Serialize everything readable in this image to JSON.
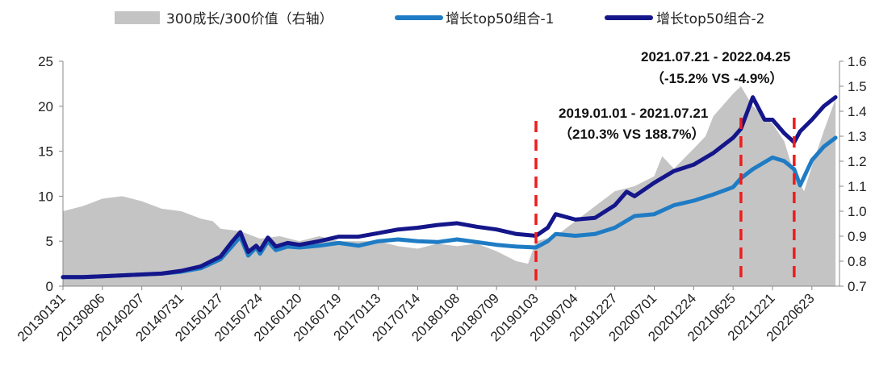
{
  "colors": {
    "area": "#c4c4c4",
    "series1": "#1f7cc4",
    "series2": "#14168a",
    "marker": "#ee1c1c",
    "axis": "#888888"
  },
  "legend": [
    {
      "label": "300成长/300价值（右轴）",
      "kind": "area"
    },
    {
      "label": "增长top50组合-1",
      "kind": "line1"
    },
    {
      "label": "增长top50组合-2",
      "kind": "line2"
    }
  ],
  "annotations": [
    {
      "line1": "2019.01.01 - 2021.07.21",
      "line2": "（210.3% VS 188.7%）"
    },
    {
      "line1": "2021.07.21 - 2022.04.25",
      "line2": "（-15.2% VS -4.9%）"
    }
  ],
  "chart_data": {
    "type": "line",
    "x_tick_labels": [
      "20130131",
      "20130806",
      "20140207",
      "20140731",
      "20150127",
      "20150724",
      "20160120",
      "20160719",
      "20170113",
      "20170714",
      "20180108",
      "20180709",
      "20190103",
      "20190704",
      "20191227",
      "20200701",
      "20201224",
      "20210625",
      "20211221",
      "20220623"
    ],
    "x_index_range": [
      0,
      19.7
    ],
    "y_left": {
      "range": [
        0,
        25
      ],
      "ticks": [
        0,
        5,
        10,
        15,
        20,
        25
      ]
    },
    "y_right": {
      "range": [
        0.7,
        1.6
      ],
      "ticks": [
        "0.7",
        "0.8",
        "0.9",
        "1.0",
        "1.1",
        "1.2",
        "1.3",
        "1.4",
        "1.5",
        "1.6"
      ]
    },
    "marker_lines_x": [
      12.0,
      17.2,
      18.55
    ],
    "series": [
      {
        "name": "300成长/300价值（右轴）",
        "kind": "area",
        "axis": "right",
        "x": [
          0,
          0.5,
          1,
          1.5,
          2,
          2.5,
          3,
          3.5,
          3.8,
          4,
          4.5,
          5,
          5.5,
          6,
          6.5,
          7,
          7.5,
          8,
          8.5,
          9,
          9.5,
          10,
          10.5,
          11,
          11.5,
          11.8,
          12,
          12.5,
          13,
          13.5,
          14,
          14.5,
          15,
          15.2,
          15.5,
          16,
          16.3,
          16.5,
          17,
          17.2,
          17.5,
          18,
          18.3,
          18.55,
          18.8,
          19,
          19.3,
          19.6
        ],
        "values": [
          1.0,
          1.02,
          1.05,
          1.06,
          1.04,
          1.01,
          1.0,
          0.97,
          0.96,
          0.93,
          0.92,
          0.89,
          0.9,
          0.88,
          0.9,
          0.88,
          0.88,
          0.88,
          0.86,
          0.85,
          0.87,
          0.86,
          0.87,
          0.84,
          0.8,
          0.79,
          0.88,
          0.9,
          0.96,
          1.02,
          1.08,
          1.1,
          1.14,
          1.22,
          1.17,
          1.25,
          1.3,
          1.38,
          1.47,
          1.5,
          1.42,
          1.35,
          1.28,
          1.15,
          1.08,
          1.18,
          1.32,
          1.45
        ]
      },
      {
        "name": "增长top50组合-1",
        "kind": "line",
        "axis": "left",
        "x": [
          0,
          0.5,
          1,
          1.5,
          2,
          2.5,
          3,
          3.5,
          4,
          4.3,
          4.5,
          4.7,
          4.9,
          5.0,
          5.2,
          5.4,
          5.7,
          6,
          6.5,
          7,
          7.5,
          8,
          8.5,
          9,
          9.5,
          10,
          10.5,
          11,
          11.5,
          12,
          12.3,
          12.5,
          13,
          13.5,
          14,
          14.5,
          15,
          15.5,
          16,
          16.5,
          17,
          17.2,
          17.5,
          18,
          18.3,
          18.55,
          18.7,
          19,
          19.3,
          19.6
        ],
        "values": [
          1.0,
          1.0,
          1.1,
          1.2,
          1.3,
          1.4,
          1.6,
          2.0,
          3.0,
          4.5,
          5.5,
          3.4,
          4.3,
          3.6,
          5.0,
          4.0,
          4.4,
          4.3,
          4.5,
          4.8,
          4.5,
          5.0,
          5.2,
          5.0,
          4.9,
          5.2,
          4.9,
          4.6,
          4.4,
          4.3,
          5.0,
          5.8,
          5.6,
          5.8,
          6.5,
          7.8,
          8.0,
          9.0,
          9.5,
          10.2,
          11.0,
          12.0,
          13.0,
          14.3,
          13.9,
          13.0,
          11.2,
          14.0,
          15.5,
          16.5
        ]
      },
      {
        "name": "增长top50组合-2",
        "kind": "line",
        "axis": "left",
        "x": [
          0,
          0.5,
          1,
          1.5,
          2,
          2.5,
          3,
          3.5,
          4,
          4.3,
          4.5,
          4.7,
          4.9,
          5.0,
          5.2,
          5.4,
          5.7,
          6,
          6.5,
          7,
          7.5,
          8,
          8.5,
          9,
          9.5,
          10,
          10.5,
          11,
          11.5,
          12,
          12.3,
          12.5,
          13,
          13.5,
          14,
          14.3,
          14.5,
          15,
          15.5,
          16,
          16.5,
          17,
          17.2,
          17.5,
          17.8,
          18,
          18.3,
          18.55,
          18.7,
          19,
          19.3,
          19.6
        ],
        "values": [
          1.0,
          1.0,
          1.1,
          1.2,
          1.3,
          1.4,
          1.7,
          2.2,
          3.3,
          5.0,
          6.0,
          3.8,
          4.5,
          4.0,
          5.4,
          4.4,
          4.8,
          4.6,
          5.0,
          5.5,
          5.5,
          5.9,
          6.3,
          6.5,
          6.8,
          7.0,
          6.6,
          6.3,
          5.8,
          5.6,
          6.5,
          8.0,
          7.4,
          7.6,
          9.0,
          10.5,
          10.0,
          11.5,
          12.8,
          13.5,
          14.8,
          16.5,
          17.5,
          21.0,
          18.5,
          18.5,
          17.0,
          16.0,
          17.2,
          18.5,
          20.0,
          21.0
        ]
      }
    ]
  }
}
